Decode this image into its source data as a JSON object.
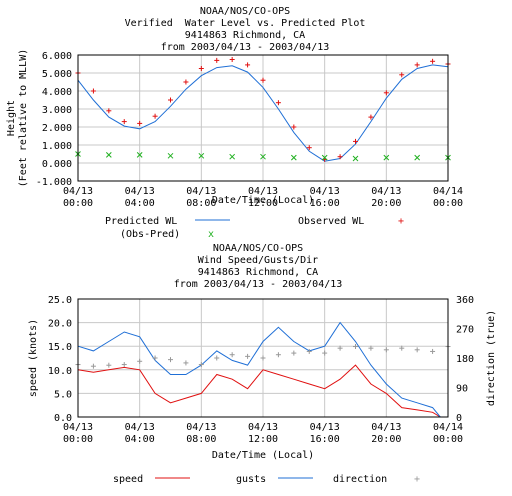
{
  "chart_data": [
    {
      "type": "line",
      "title": [
        "NOAA/NOS/CO-OPS",
        "Verified  Water Level vs. Predicted Plot",
        "9414863 Richmond, CA",
        "from 2003/04/13 - 2003/04/13"
      ],
      "xlabel": "Date/Time (Local)",
      "ylabel": [
        "Height",
        "(Feet relative to MLLW)"
      ],
      "ylim": [
        -1.0,
        6.0
      ],
      "yticks": [
        "6.000",
        "5.000",
        "4.000",
        "3.000",
        "2.000",
        "1.000",
        "0.000",
        "-1.000"
      ],
      "xticks": [
        [
          "04/13",
          "00:00"
        ],
        [
          "04/13",
          "04:00"
        ],
        [
          "04/13",
          "08:00"
        ],
        [
          "04/13",
          "12:00"
        ],
        [
          "04/13",
          "16:00"
        ],
        [
          "04/13",
          "20:00"
        ],
        [
          "04/14",
          "00:00"
        ]
      ],
      "xlim_hours": [
        0,
        24
      ],
      "grid": true,
      "legend_position": "bottom",
      "series": [
        {
          "name": "Predicted WL",
          "style": "line",
          "color": "#1f6fd6",
          "x": [
            0,
            1,
            2,
            3,
            4,
            5,
            6,
            7,
            8,
            9,
            10,
            11,
            12,
            13,
            14,
            15,
            16,
            17,
            18,
            19,
            20,
            21,
            22,
            23,
            24
          ],
          "values": [
            4.6,
            3.5,
            2.55,
            2.05,
            1.9,
            2.3,
            3.15,
            4.1,
            4.85,
            5.3,
            5.4,
            5.05,
            4.2,
            3.0,
            1.7,
            0.65,
            0.1,
            0.25,
            1.05,
            2.3,
            3.6,
            4.65,
            5.25,
            5.45,
            5.35
          ]
        },
        {
          "name": "Observed WL",
          "style": "markers",
          "marker": "+",
          "color": "#e01010",
          "x": [
            0,
            1,
            2,
            3,
            4,
            5,
            6,
            7,
            8,
            9,
            10,
            11,
            12,
            13,
            14,
            15,
            16,
            17,
            18,
            19,
            20,
            21,
            22,
            23,
            24
          ],
          "values": [
            5.0,
            4.0,
            2.9,
            2.3,
            2.2,
            2.6,
            3.5,
            4.5,
            5.25,
            5.7,
            5.75,
            5.45,
            4.6,
            3.35,
            2.0,
            0.85,
            0.2,
            0.35,
            1.2,
            2.55,
            3.9,
            4.9,
            5.45,
            5.65,
            5.5
          ]
        },
        {
          "name": "(Obs-Pred)",
          "style": "markers",
          "marker": "x",
          "color": "#20b020",
          "x": [
            0,
            2,
            4,
            6,
            8,
            10,
            12,
            14,
            16,
            18,
            20,
            22,
            24
          ],
          "values": [
            0.5,
            0.45,
            0.45,
            0.4,
            0.4,
            0.35,
            0.35,
            0.3,
            0.3,
            0.25,
            0.3,
            0.3,
            0.3
          ]
        }
      ]
    },
    {
      "type": "line",
      "title": [
        "NOAA/NOS/CO-OPS",
        "Wind Speed/Gusts/Dir",
        "9414863 Richmond, CA",
        "from 2003/04/13 - 2003/04/13"
      ],
      "xlabel": "Date/Time (Local)",
      "ylabel": "speed (knots)",
      "y2label": "direction (true)",
      "ylim": [
        0.0,
        25.0
      ],
      "y2lim": [
        0,
        360
      ],
      "yticks": [
        "25.0",
        "20.0",
        "15.0",
        "10.0",
        "5.0",
        "0.0"
      ],
      "y2ticks": [
        "360",
        "270",
        "180",
        "90",
        "0"
      ],
      "xticks": [
        [
          "04/13",
          "00:00"
        ],
        [
          "04/13",
          "04:00"
        ],
        [
          "04/13",
          "08:00"
        ],
        [
          "04/13",
          "12:00"
        ],
        [
          "04/13",
          "16:00"
        ],
        [
          "04/13",
          "20:00"
        ],
        [
          "04/14",
          "00:00"
        ]
      ],
      "xlim_hours": [
        0,
        24
      ],
      "grid": true,
      "legend_position": "bottom",
      "series": [
        {
          "name": "speed",
          "style": "line",
          "color": "#e01010",
          "axis": "left",
          "x": [
            0,
            1,
            2,
            3,
            4,
            5,
            6,
            7,
            8,
            9,
            10,
            11,
            12,
            13,
            14,
            15,
            16,
            17,
            18,
            19,
            20,
            21,
            22,
            23,
            23.5
          ],
          "values": [
            10,
            9.5,
            10,
            10.5,
            10,
            5,
            3,
            4,
            5,
            9,
            8,
            6,
            10,
            9,
            8,
            7,
            6,
            8,
            11,
            7,
            5,
            2,
            1.5,
            1,
            0
          ]
        },
        {
          "name": "gusts",
          "style": "line",
          "color": "#1f6fd6",
          "axis": "left",
          "x": [
            0,
            1,
            2,
            3,
            4,
            5,
            6,
            7,
            8,
            9,
            10,
            11,
            12,
            13,
            14,
            15,
            16,
            17,
            18,
            19,
            20,
            21,
            22,
            23,
            23.5
          ],
          "values": [
            15,
            14,
            16,
            18,
            17,
            12,
            9,
            9,
            11,
            14,
            12,
            11,
            16,
            19,
            16,
            14,
            15,
            20,
            16,
            11,
            7,
            4,
            3,
            2,
            0
          ]
        },
        {
          "name": "direction",
          "style": "markers",
          "marker": "+",
          "color": "#999999",
          "axis": "right",
          "x": [
            0,
            1,
            2,
            3,
            4,
            5,
            6,
            7,
            8,
            9,
            10,
            11,
            12,
            13,
            14,
            15,
            16,
            17,
            18,
            19,
            20,
            21,
            22,
            23,
            24
          ],
          "values": [
            160,
            155,
            158,
            160,
            170,
            180,
            175,
            165,
            160,
            180,
            190,
            185,
            180,
            190,
            195,
            200,
            195,
            210,
            215,
            210,
            205,
            210,
            205,
            200,
            215
          ]
        }
      ]
    }
  ]
}
